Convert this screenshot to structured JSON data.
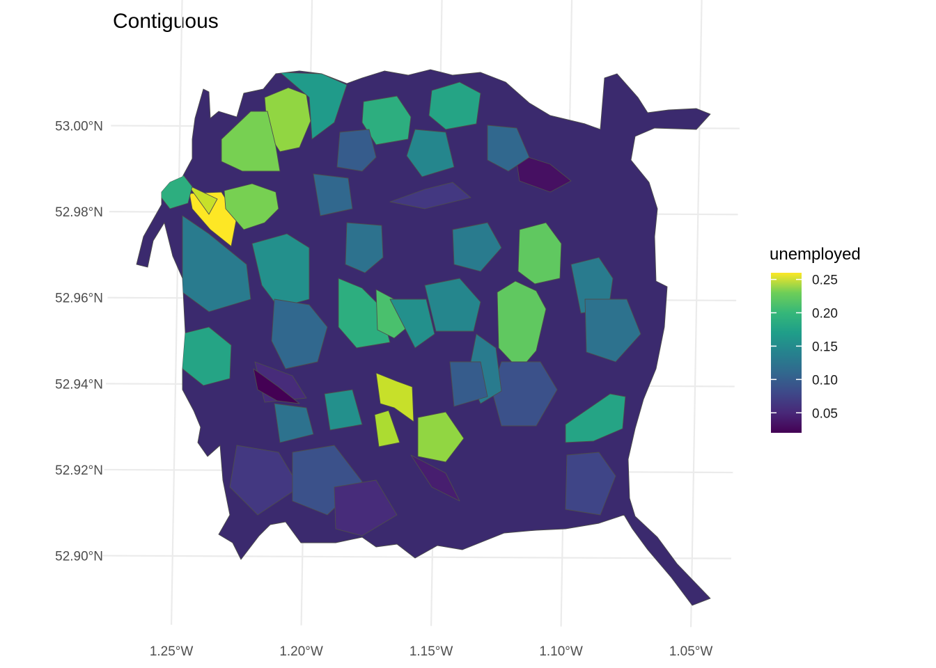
{
  "chart_data": {
    "type": "choropleth",
    "title": "Contiguous",
    "projection": "cartogram",
    "x_axis": {
      "ticks": [
        "1.25°W",
        "1.20°W",
        "1.15°W",
        "1.10°W",
        "1.05°W"
      ],
      "values": [
        -1.25,
        -1.2,
        -1.15,
        -1.1,
        -1.05
      ]
    },
    "y_axis": {
      "ticks": [
        "53.00°N",
        "52.98°N",
        "52.96°N",
        "52.94°N",
        "52.92°N",
        "52.90°N"
      ],
      "values": [
        53.0,
        52.98,
        52.96,
        52.94,
        52.92,
        52.9
      ]
    },
    "legend": {
      "title": "unemployed",
      "position": "right",
      "scale": "viridis",
      "range": [
        0.02,
        0.26
      ],
      "breaks": [
        "0.25",
        "0.20",
        "0.15",
        "0.10",
        "0.05"
      ],
      "break_values": [
        0.25,
        0.2,
        0.15,
        0.1,
        0.05
      ]
    },
    "grid": true,
    "fill_variable": "unemployed",
    "regions": [
      {
        "value": 0.26
      },
      {
        "value": 0.21
      },
      {
        "value": 0.22
      },
      {
        "value": 0.24
      },
      {
        "value": 0.2
      },
      {
        "value": 0.17
      },
      {
        "value": 0.19
      },
      {
        "value": 0.14
      },
      {
        "value": 0.12
      },
      {
        "value": 0.1
      },
      {
        "value": 0.21
      },
      {
        "value": 0.15
      },
      {
        "value": 0.17
      },
      {
        "value": 0.13
      },
      {
        "value": 0.09
      },
      {
        "value": 0.11
      },
      {
        "value": 0.2
      },
      {
        "value": 0.16
      },
      {
        "value": 0.08
      },
      {
        "value": 0.12
      },
      {
        "value": 0.23
      },
      {
        "value": 0.24
      },
      {
        "value": 0.22
      },
      {
        "value": 0.16
      },
      {
        "value": 0.14
      },
      {
        "value": 0.11
      },
      {
        "value": 0.06
      },
      {
        "value": 0.05
      },
      {
        "value": 0.03
      },
      {
        "value": 0.02
      },
      {
        "value": 0.04
      },
      {
        "value": 0.07
      },
      {
        "value": 0.17
      },
      {
        "value": 0.13
      },
      {
        "value": 0.12
      },
      {
        "value": 0.16
      },
      {
        "value": 0.1
      },
      {
        "value": 0.09
      },
      {
        "value": 0.06
      },
      {
        "value": 0.11
      },
      {
        "value": 0.14
      },
      {
        "value": 0.08
      },
      {
        "value": 0.05
      },
      {
        "value": 0.12
      },
      {
        "value": 0.1
      }
    ]
  }
}
